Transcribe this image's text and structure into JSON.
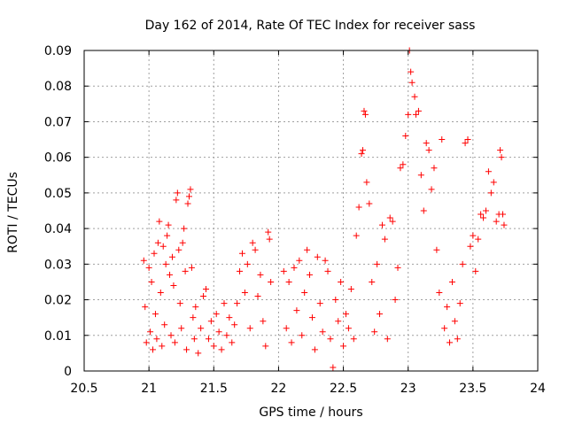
{
  "chart_data": {
    "type": "scatter",
    "title": "Day 162 of 2014, Rate Of TEC Index for receiver sass",
    "xlabel": "GPS time / hours",
    "ylabel": "ROTI / TECUs",
    "xlim": [
      20.5,
      24
    ],
    "ylim": [
      0,
      0.09
    ],
    "xticks": [
      "20.5",
      "21",
      "21.5",
      "22",
      "22.5",
      "23",
      "23.5",
      "24"
    ],
    "yticks": [
      "0",
      "0.01",
      "0.02",
      "0.03",
      "0.04",
      "0.05",
      "0.06",
      "0.07",
      "0.08",
      "0.09"
    ],
    "grid": true,
    "marker": "+",
    "color": "#ff0000",
    "series": [
      {
        "name": "ROTI",
        "points": [
          [
            20.96,
            0.031
          ],
          [
            20.97,
            0.018
          ],
          [
            20.98,
            0.008
          ],
          [
            21.0,
            0.029
          ],
          [
            21.01,
            0.011
          ],
          [
            21.02,
            0.025
          ],
          [
            21.03,
            0.006
          ],
          [
            21.04,
            0.033
          ],
          [
            21.05,
            0.016
          ],
          [
            21.06,
            0.009
          ],
          [
            21.07,
            0.036
          ],
          [
            21.08,
            0.042
          ],
          [
            21.09,
            0.022
          ],
          [
            21.1,
            0.007
          ],
          [
            21.11,
            0.035
          ],
          [
            21.12,
            0.013
          ],
          [
            21.13,
            0.03
          ],
          [
            21.14,
            0.038
          ],
          [
            21.15,
            0.041
          ],
          [
            21.16,
            0.027
          ],
          [
            21.17,
            0.01
          ],
          [
            21.18,
            0.032
          ],
          [
            21.19,
            0.024
          ],
          [
            21.2,
            0.008
          ],
          [
            21.21,
            0.048
          ],
          [
            21.22,
            0.05
          ],
          [
            21.23,
            0.034
          ],
          [
            21.24,
            0.019
          ],
          [
            21.25,
            0.012
          ],
          [
            21.26,
            0.036
          ],
          [
            21.27,
            0.04
          ],
          [
            21.28,
            0.028
          ],
          [
            21.29,
            0.006
          ],
          [
            21.3,
            0.047
          ],
          [
            21.31,
            0.049
          ],
          [
            21.32,
            0.051
          ],
          [
            21.33,
            0.029
          ],
          [
            21.34,
            0.015
          ],
          [
            21.35,
            0.009
          ],
          [
            21.36,
            0.018
          ],
          [
            21.38,
            0.005
          ],
          [
            21.4,
            0.012
          ],
          [
            21.42,
            0.021
          ],
          [
            21.44,
            0.023
          ],
          [
            21.46,
            0.009
          ],
          [
            21.48,
            0.014
          ],
          [
            21.5,
            0.007
          ],
          [
            21.52,
            0.016
          ],
          [
            21.54,
            0.011
          ],
          [
            21.56,
            0.006
          ],
          [
            21.58,
            0.019
          ],
          [
            21.6,
            0.01
          ],
          [
            21.62,
            0.015
          ],
          [
            21.64,
            0.008
          ],
          [
            21.66,
            0.013
          ],
          [
            21.68,
            0.019
          ],
          [
            21.7,
            0.028
          ],
          [
            21.72,
            0.033
          ],
          [
            21.74,
            0.022
          ],
          [
            21.76,
            0.03
          ],
          [
            21.78,
            0.012
          ],
          [
            21.8,
            0.036
          ],
          [
            21.82,
            0.034
          ],
          [
            21.84,
            0.021
          ],
          [
            21.86,
            0.027
          ],
          [
            21.88,
            0.014
          ],
          [
            21.9,
            0.007
          ],
          [
            21.92,
            0.039
          ],
          [
            21.93,
            0.037
          ],
          [
            21.94,
            0.025
          ],
          [
            22.04,
            0.028
          ],
          [
            22.06,
            0.012
          ],
          [
            22.08,
            0.025
          ],
          [
            22.1,
            0.008
          ],
          [
            22.12,
            0.029
          ],
          [
            22.14,
            0.017
          ],
          [
            22.16,
            0.031
          ],
          [
            22.18,
            0.01
          ],
          [
            22.2,
            0.022
          ],
          [
            22.22,
            0.034
          ],
          [
            22.24,
            0.027
          ],
          [
            22.26,
            0.015
          ],
          [
            22.28,
            0.006
          ],
          [
            22.3,
            0.032
          ],
          [
            22.32,
            0.019
          ],
          [
            22.34,
            0.011
          ],
          [
            22.36,
            0.031
          ],
          [
            22.38,
            0.028
          ],
          [
            22.4,
            0.009
          ],
          [
            22.42,
            0.001
          ],
          [
            22.44,
            0.02
          ],
          [
            22.46,
            0.014
          ],
          [
            22.48,
            0.025
          ],
          [
            22.5,
            0.007
          ],
          [
            22.52,
            0.016
          ],
          [
            22.54,
            0.012
          ],
          [
            22.56,
            0.023
          ],
          [
            22.58,
            0.009
          ],
          [
            22.6,
            0.038
          ],
          [
            22.62,
            0.046
          ],
          [
            22.64,
            0.061
          ],
          [
            22.65,
            0.062
          ],
          [
            22.66,
            0.073
          ],
          [
            22.67,
            0.072
          ],
          [
            22.68,
            0.053
          ],
          [
            22.7,
            0.047
          ],
          [
            22.72,
            0.025
          ],
          [
            22.74,
            0.011
          ],
          [
            22.76,
            0.03
          ],
          [
            22.78,
            0.016
          ],
          [
            22.8,
            0.041
          ],
          [
            22.82,
            0.037
          ],
          [
            22.84,
            0.009
          ],
          [
            22.86,
            0.043
          ],
          [
            22.88,
            0.042
          ],
          [
            22.9,
            0.02
          ],
          [
            22.92,
            0.029
          ],
          [
            22.94,
            0.057
          ],
          [
            22.96,
            0.058
          ],
          [
            22.98,
            0.066
          ],
          [
            23.0,
            0.072
          ],
          [
            23.01,
            0.09
          ],
          [
            23.02,
            0.084
          ],
          [
            23.03,
            0.081
          ],
          [
            23.05,
            0.077
          ],
          [
            23.06,
            0.072
          ],
          [
            23.08,
            0.073
          ],
          [
            23.1,
            0.055
          ],
          [
            23.12,
            0.045
          ],
          [
            23.14,
            0.064
          ],
          [
            23.16,
            0.062
          ],
          [
            23.18,
            0.051
          ],
          [
            23.2,
            0.057
          ],
          [
            23.22,
            0.034
          ],
          [
            23.24,
            0.022
          ],
          [
            23.26,
            0.065
          ],
          [
            23.28,
            0.012
          ],
          [
            23.3,
            0.018
          ],
          [
            23.32,
            0.008
          ],
          [
            23.34,
            0.025
          ],
          [
            23.36,
            0.014
          ],
          [
            23.38,
            0.009
          ],
          [
            23.4,
            0.019
          ],
          [
            23.42,
            0.03
          ],
          [
            23.44,
            0.064
          ],
          [
            23.46,
            0.065
          ],
          [
            23.48,
            0.035
          ],
          [
            23.5,
            0.038
          ],
          [
            23.52,
            0.028
          ],
          [
            23.54,
            0.037
          ],
          [
            23.56,
            0.044
          ],
          [
            23.58,
            0.043
          ],
          [
            23.6,
            0.045
          ],
          [
            23.62,
            0.056
          ],
          [
            23.64,
            0.05
          ],
          [
            23.66,
            0.053
          ],
          [
            23.68,
            0.042
          ],
          [
            23.7,
            0.044
          ],
          [
            23.71,
            0.062
          ],
          [
            23.72,
            0.06
          ],
          [
            23.73,
            0.044
          ],
          [
            23.74,
            0.041
          ]
        ]
      }
    ]
  }
}
